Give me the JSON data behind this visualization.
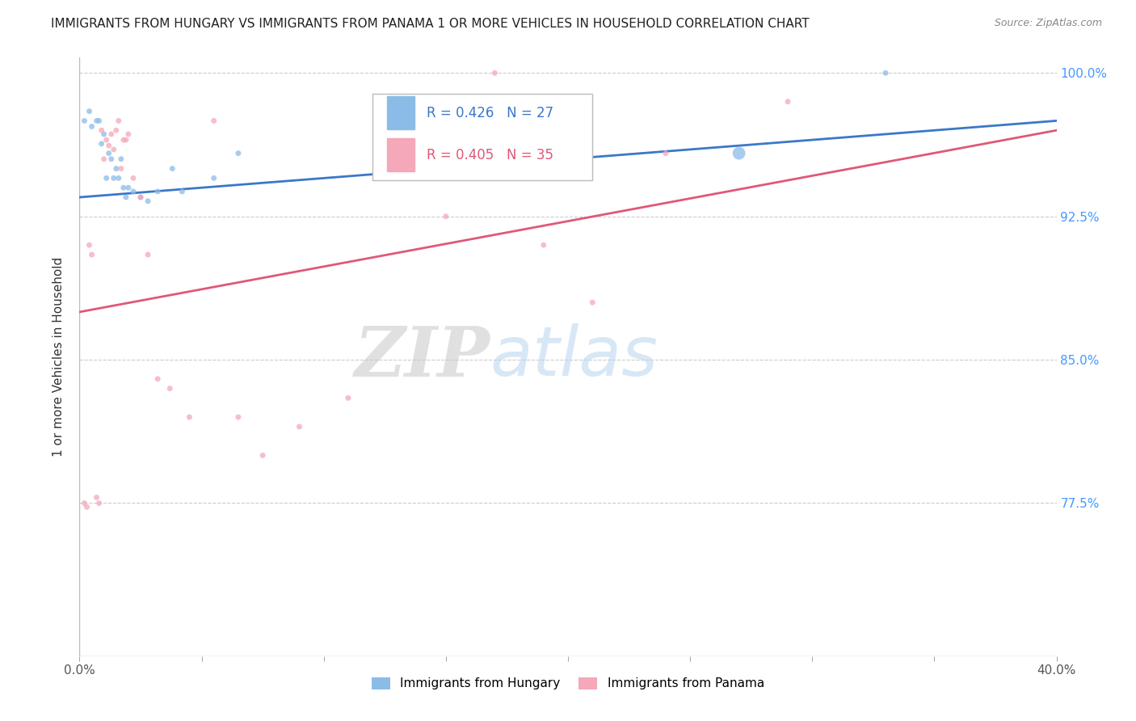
{
  "title": "IMMIGRANTS FROM HUNGARY VS IMMIGRANTS FROM PANAMA 1 OR MORE VEHICLES IN HOUSEHOLD CORRELATION CHART",
  "source": "Source: ZipAtlas.com",
  "ylabel": "1 or more Vehicles in Household",
  "xlim": [
    0.0,
    0.4
  ],
  "ylim": [
    0.695,
    1.008
  ],
  "xticks": [
    0.0,
    0.05,
    0.1,
    0.15,
    0.2,
    0.25,
    0.3,
    0.35,
    0.4
  ],
  "xticklabels": [
    "0.0%",
    "",
    "",
    "",
    "",
    "",
    "",
    "",
    "40.0%"
  ],
  "yticks": [
    0.775,
    0.85,
    0.925,
    1.0
  ],
  "yticklabels": [
    "77.5%",
    "85.0%",
    "92.5%",
    "100.0%"
  ],
  "hungary_R": 0.426,
  "hungary_N": 27,
  "panama_R": 0.405,
  "panama_N": 35,
  "hungary_color": "#8bbce8",
  "panama_color": "#f4a8ba",
  "hungary_line_color": "#3b78c8",
  "panama_line_color": "#e05878",
  "watermark_zip": "ZIP",
  "watermark_atlas": "atlas",
  "hungary_x": [
    0.002,
    0.004,
    0.005,
    0.007,
    0.008,
    0.009,
    0.01,
    0.011,
    0.012,
    0.013,
    0.014,
    0.015,
    0.016,
    0.017,
    0.018,
    0.019,
    0.02,
    0.022,
    0.025,
    0.028,
    0.032,
    0.038,
    0.042,
    0.055,
    0.065,
    0.27,
    0.33
  ],
  "hungary_y": [
    0.975,
    0.98,
    0.972,
    0.975,
    0.975,
    0.963,
    0.968,
    0.945,
    0.958,
    0.955,
    0.945,
    0.95,
    0.945,
    0.955,
    0.94,
    0.935,
    0.94,
    0.938,
    0.935,
    0.933,
    0.938,
    0.95,
    0.938,
    0.945,
    0.958,
    0.958,
    1.0
  ],
  "hungary_sizes": [
    25,
    25,
    25,
    25,
    25,
    25,
    25,
    25,
    25,
    25,
    25,
    25,
    25,
    25,
    25,
    25,
    25,
    25,
    25,
    25,
    25,
    25,
    25,
    25,
    25,
    130,
    25
  ],
  "panama_x": [
    0.002,
    0.003,
    0.004,
    0.005,
    0.007,
    0.008,
    0.009,
    0.01,
    0.011,
    0.012,
    0.013,
    0.014,
    0.015,
    0.016,
    0.017,
    0.018,
    0.019,
    0.02,
    0.022,
    0.025,
    0.028,
    0.032,
    0.037,
    0.045,
    0.055,
    0.065,
    0.075,
    0.09,
    0.11,
    0.15,
    0.17,
    0.19,
    0.21,
    0.24,
    0.29
  ],
  "panama_y": [
    0.775,
    0.773,
    0.91,
    0.905,
    0.778,
    0.775,
    0.97,
    0.955,
    0.965,
    0.962,
    0.968,
    0.96,
    0.97,
    0.975,
    0.95,
    0.965,
    0.965,
    0.968,
    0.945,
    0.935,
    0.905,
    0.84,
    0.835,
    0.82,
    0.975,
    0.82,
    0.8,
    0.815,
    0.83,
    0.925,
    1.0,
    0.91,
    0.88,
    0.958,
    0.985
  ],
  "panama_sizes": [
    25,
    25,
    25,
    25,
    25,
    25,
    25,
    25,
    25,
    25,
    25,
    25,
    25,
    25,
    25,
    25,
    25,
    25,
    25,
    25,
    25,
    25,
    25,
    25,
    25,
    25,
    25,
    25,
    25,
    25,
    25,
    25,
    25,
    25,
    25
  ],
  "hungary_line_x0": 0.0,
  "hungary_line_y0": 0.935,
  "hungary_line_x1": 0.4,
  "hungary_line_y1": 0.975,
  "panama_line_x0": 0.0,
  "panama_line_y0": 0.875,
  "panama_line_x1": 0.4,
  "panama_line_y1": 0.97
}
